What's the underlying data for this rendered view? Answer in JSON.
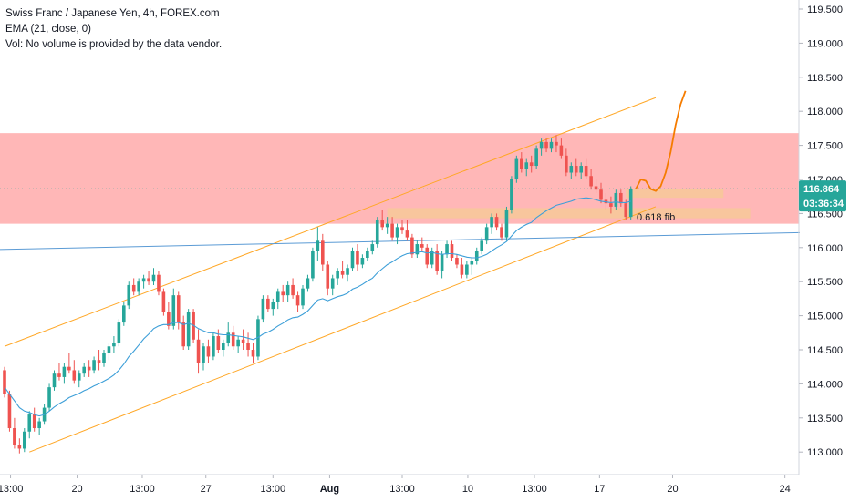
{
  "legend": {
    "line1": "Swiss Franc / Japanese Yen, 4h, FOREX.com",
    "line2": "EMA (21, close, 0)",
    "line3": "Vol: No volume is provided by the data vendor."
  },
  "chart_data": {
    "type": "candlestick",
    "symbol": "CHFJPY",
    "y_ticks": [
      "119.500",
      "119.000",
      "118.500",
      "118.000",
      "117.500",
      "117.000",
      "116.500",
      "116.000",
      "115.500",
      "115.000",
      "114.500",
      "114.000",
      "113.500",
      "113.000"
    ],
    "ylim": [
      112.75,
      119.75
    ],
    "x_ticks": [
      "13:00",
      "20",
      "13:00",
      "27",
      "13:00",
      "Aug",
      "13:00",
      "10",
      "13:00",
      "17",
      "20",
      "24"
    ],
    "price_tag": {
      "value": "116.864",
      "countdown": "03:36:34",
      "color": "#26a69a"
    },
    "annotations": [
      {
        "text": "0.618 fib",
        "price": 116.45
      }
    ],
    "zone": {
      "from": 116.35,
      "to": 117.68,
      "color": "#ffb3b3"
    },
    "fib_band": {
      "from": 116.43,
      "to": 116.58,
      "color": "#f7c89a"
    },
    "target_box": {
      "from": 116.73,
      "to": 116.86,
      "color": "#f7c89a"
    },
    "colors": {
      "up": "#26a69a",
      "down": "#ef5350",
      "ema": "#3d9fd8",
      "channel": "#ffa726",
      "trendline": "#5b9bd5",
      "projection": "#f57c00"
    },
    "candles": [
      [
        114.2,
        114.25,
        113.8,
        113.85
      ],
      [
        113.85,
        113.9,
        113.3,
        113.35
      ],
      [
        113.35,
        113.5,
        113.05,
        113.1
      ],
      [
        113.1,
        113.2,
        112.98,
        113.05
      ],
      [
        113.05,
        113.35,
        113.0,
        113.3
      ],
      [
        113.3,
        113.6,
        113.2,
        113.55
      ],
      [
        113.55,
        113.65,
        113.3,
        113.35
      ],
      [
        113.35,
        113.5,
        113.25,
        113.45
      ],
      [
        113.45,
        113.7,
        113.4,
        113.65
      ],
      [
        113.65,
        114.0,
        113.6,
        113.95
      ],
      [
        113.95,
        114.2,
        113.9,
        114.15
      ],
      [
        114.15,
        114.3,
        114.05,
        114.1
      ],
      [
        114.1,
        114.3,
        114.0,
        114.25
      ],
      [
        114.25,
        114.45,
        114.15,
        114.2
      ],
      [
        114.2,
        114.35,
        114.0,
        114.05
      ],
      [
        114.05,
        114.2,
        113.95,
        114.15
      ],
      [
        114.15,
        114.3,
        114.1,
        114.25
      ],
      [
        114.25,
        114.35,
        114.1,
        114.2
      ],
      [
        114.2,
        114.4,
        114.15,
        114.35
      ],
      [
        114.35,
        114.5,
        114.2,
        114.3
      ],
      [
        114.3,
        114.5,
        114.25,
        114.45
      ],
      [
        114.45,
        114.6,
        114.35,
        114.55
      ],
      [
        114.55,
        114.7,
        114.45,
        114.6
      ],
      [
        114.6,
        114.95,
        114.55,
        114.9
      ],
      [
        114.9,
        115.2,
        114.85,
        115.15
      ],
      [
        115.15,
        115.5,
        115.1,
        115.45
      ],
      [
        115.45,
        115.55,
        115.3,
        115.35
      ],
      [
        115.35,
        115.55,
        115.3,
        115.5
      ],
      [
        115.5,
        115.6,
        115.4,
        115.55
      ],
      [
        115.55,
        115.65,
        115.45,
        115.5
      ],
      [
        115.5,
        115.7,
        115.45,
        115.6
      ],
      [
        115.6,
        115.65,
        115.3,
        115.35
      ],
      [
        115.35,
        115.4,
        115.0,
        115.05
      ],
      [
        115.05,
        115.2,
        114.8,
        114.85
      ],
      [
        114.85,
        115.4,
        114.8,
        115.3
      ],
      [
        115.3,
        115.35,
        114.8,
        114.9
      ],
      [
        114.9,
        115.0,
        114.5,
        114.55
      ],
      [
        114.55,
        115.1,
        114.5,
        115.05
      ],
      [
        115.05,
        115.1,
        114.6,
        114.65
      ],
      [
        114.65,
        114.8,
        114.15,
        114.3
      ],
      [
        114.3,
        114.6,
        114.2,
        114.55
      ],
      [
        114.55,
        114.65,
        114.3,
        114.4
      ],
      [
        114.4,
        114.75,
        114.35,
        114.7
      ],
      [
        114.7,
        114.8,
        114.45,
        114.5
      ],
      [
        114.5,
        114.65,
        114.4,
        114.6
      ],
      [
        114.6,
        114.9,
        114.55,
        114.75
      ],
      [
        114.75,
        114.85,
        114.5,
        114.55
      ],
      [
        114.55,
        114.7,
        114.45,
        114.65
      ],
      [
        114.65,
        114.8,
        114.5,
        114.6
      ],
      [
        114.6,
        114.75,
        114.4,
        114.5
      ],
      [
        114.5,
        114.6,
        114.3,
        114.4
      ],
      [
        114.4,
        115.0,
        114.35,
        114.95
      ],
      [
        114.95,
        115.3,
        114.9,
        115.25
      ],
      [
        115.25,
        115.3,
        115.05,
        115.1
      ],
      [
        115.1,
        115.25,
        115.0,
        115.2
      ],
      [
        115.2,
        115.4,
        115.1,
        115.35
      ],
      [
        115.35,
        115.45,
        115.2,
        115.3
      ],
      [
        115.3,
        115.5,
        115.2,
        115.45
      ],
      [
        115.45,
        115.55,
        115.25,
        115.3
      ],
      [
        115.3,
        115.35,
        115.05,
        115.15
      ],
      [
        115.15,
        115.45,
        115.1,
        115.4
      ],
      [
        115.4,
        115.6,
        115.35,
        115.55
      ],
      [
        115.55,
        116.0,
        115.5,
        115.95
      ],
      [
        115.95,
        116.3,
        115.8,
        116.1
      ],
      [
        116.1,
        116.2,
        115.65,
        115.75
      ],
      [
        115.75,
        115.8,
        115.3,
        115.4
      ],
      [
        115.4,
        115.6,
        115.3,
        115.55
      ],
      [
        115.55,
        115.7,
        115.45,
        115.65
      ],
      [
        115.65,
        115.8,
        115.55,
        115.6
      ],
      [
        115.6,
        115.75,
        115.5,
        115.7
      ],
      [
        115.7,
        116.0,
        115.65,
        115.95
      ],
      [
        115.95,
        116.05,
        115.65,
        115.75
      ],
      [
        115.75,
        115.9,
        115.7,
        115.85
      ],
      [
        115.85,
        116.0,
        115.8,
        115.95
      ],
      [
        115.95,
        116.1,
        115.9,
        116.05
      ],
      [
        116.05,
        116.45,
        116.0,
        116.4
      ],
      [
        116.4,
        116.55,
        116.25,
        116.3
      ],
      [
        116.3,
        116.45,
        116.2,
        116.35
      ],
      [
        116.35,
        116.45,
        116.1,
        116.15
      ],
      [
        116.15,
        116.35,
        116.05,
        116.3
      ],
      [
        116.3,
        116.4,
        116.2,
        116.25
      ],
      [
        116.25,
        116.4,
        116.1,
        116.15
      ],
      [
        116.15,
        116.2,
        115.85,
        115.9
      ],
      [
        115.9,
        116.1,
        115.85,
        116.05
      ],
      [
        116.05,
        116.15,
        115.95,
        116.0
      ],
      [
        116.0,
        116.05,
        115.7,
        115.75
      ],
      [
        115.75,
        116.0,
        115.7,
        115.95
      ],
      [
        115.95,
        116.05,
        115.6,
        115.65
      ],
      [
        115.65,
        115.95,
        115.55,
        115.9
      ],
      [
        115.9,
        116.1,
        115.85,
        116.05
      ],
      [
        116.05,
        116.1,
        115.8,
        115.85
      ],
      [
        115.85,
        115.9,
        115.7,
        115.75
      ],
      [
        115.75,
        115.85,
        115.55,
        115.6
      ],
      [
        115.6,
        115.8,
        115.55,
        115.75
      ],
      [
        115.75,
        115.85,
        115.6,
        115.8
      ],
      [
        115.8,
        116.0,
        115.75,
        115.95
      ],
      [
        115.95,
        116.15,
        115.9,
        116.1
      ],
      [
        116.1,
        116.35,
        116.05,
        116.3
      ],
      [
        116.3,
        116.5,
        116.2,
        116.45
      ],
      [
        116.45,
        116.5,
        116.25,
        116.3
      ],
      [
        116.3,
        116.35,
        116.1,
        116.15
      ],
      [
        116.15,
        116.6,
        116.1,
        116.55
      ],
      [
        116.55,
        117.05,
        116.5,
        117.0
      ],
      [
        117.0,
        117.35,
        116.95,
        117.3
      ],
      [
        117.3,
        117.4,
        117.1,
        117.15
      ],
      [
        117.15,
        117.3,
        117.05,
        117.25
      ],
      [
        117.25,
        117.35,
        117.1,
        117.2
      ],
      [
        117.2,
        117.5,
        117.15,
        117.45
      ],
      [
        117.45,
        117.6,
        117.35,
        117.55
      ],
      [
        117.55,
        117.6,
        117.4,
        117.45
      ],
      [
        117.45,
        117.6,
        117.4,
        117.55
      ],
      [
        117.55,
        117.65,
        117.4,
        117.5
      ],
      [
        117.5,
        117.6,
        117.3,
        117.35
      ],
      [
        117.35,
        117.45,
        117.05,
        117.1
      ],
      [
        117.1,
        117.25,
        117.0,
        117.2
      ],
      [
        117.2,
        117.3,
        117.05,
        117.1
      ],
      [
        117.1,
        117.25,
        117.0,
        117.2
      ],
      [
        117.2,
        117.3,
        117.0,
        117.05
      ],
      [
        117.05,
        117.15,
        116.85,
        116.9
      ],
      [
        116.9,
        117.0,
        116.8,
        116.85
      ],
      [
        116.85,
        116.95,
        116.65,
        116.7
      ],
      [
        116.7,
        116.8,
        116.55,
        116.65
      ],
      [
        116.65,
        116.75,
        116.5,
        116.6
      ],
      [
        116.6,
        116.85,
        116.55,
        116.8
      ],
      [
        116.8,
        116.85,
        116.6,
        116.65
      ],
      [
        116.65,
        116.7,
        116.4,
        116.45
      ],
      [
        116.45,
        116.9,
        116.4,
        116.86
      ]
    ],
    "ema_values": [
      113.95,
      113.85,
      113.75,
      113.65,
      113.6,
      113.58,
      113.55,
      113.53,
      113.55,
      113.6,
      113.66,
      113.71,
      113.75,
      113.8,
      113.83,
      113.86,
      113.9,
      113.93,
      113.97,
      114.0,
      114.04,
      114.08,
      114.13,
      114.2,
      114.29,
      114.4,
      114.48,
      114.57,
      114.66,
      114.73,
      114.81,
      114.85,
      114.87,
      114.87,
      114.9,
      114.9,
      114.87,
      114.89,
      114.86,
      114.81,
      114.78,
      114.75,
      114.75,
      114.73,
      114.72,
      114.72,
      114.71,
      114.7,
      114.69,
      114.67,
      114.65,
      114.68,
      114.73,
      114.76,
      114.8,
      114.85,
      114.89,
      114.94,
      114.97,
      114.98,
      115.02,
      115.07,
      115.15,
      115.23,
      115.25,
      115.22,
      115.25,
      115.28,
      115.3,
      115.33,
      115.39,
      115.42,
      115.46,
      115.51,
      115.55,
      115.63,
      115.69,
      115.75,
      115.79,
      115.84,
      115.88,
      115.91,
      115.92,
      115.93,
      115.94,
      115.92,
      115.93,
      115.91,
      115.9,
      115.91,
      115.91,
      115.9,
      115.88,
      115.86,
      115.85,
      115.85,
      115.87,
      115.9,
      115.95,
      116.0,
      116.04,
      116.09,
      116.17,
      116.25,
      116.3,
      116.34,
      116.37,
      116.44,
      116.49,
      116.54,
      116.58,
      116.62,
      116.64,
      116.66,
      116.68,
      116.71,
      116.72,
      116.73,
      116.72,
      116.7,
      116.68,
      116.67,
      116.66,
      116.67,
      116.66,
      116.66,
      116.68
    ],
    "channel_lines": [
      {
        "from": [
          0,
          114.55
        ],
        "to": [
          131,
          118.2
        ]
      },
      {
        "from": [
          5,
          113.0
        ],
        "to": [
          131,
          116.6
        ]
      }
    ],
    "trendline": {
      "from": [
        -2,
        115.97
      ],
      "to": [
        160,
        116.22
      ]
    },
    "projection_path": [
      [
        127,
        116.86
      ],
      [
        128,
        117.0
      ],
      [
        129,
        116.98
      ],
      [
        130,
        116.86
      ],
      [
        131,
        116.83
      ],
      [
        132,
        116.9
      ],
      [
        133,
        117.1
      ],
      [
        134,
        117.4
      ],
      [
        135,
        117.8
      ],
      [
        136,
        118.1
      ],
      [
        137,
        118.3
      ]
    ]
  }
}
